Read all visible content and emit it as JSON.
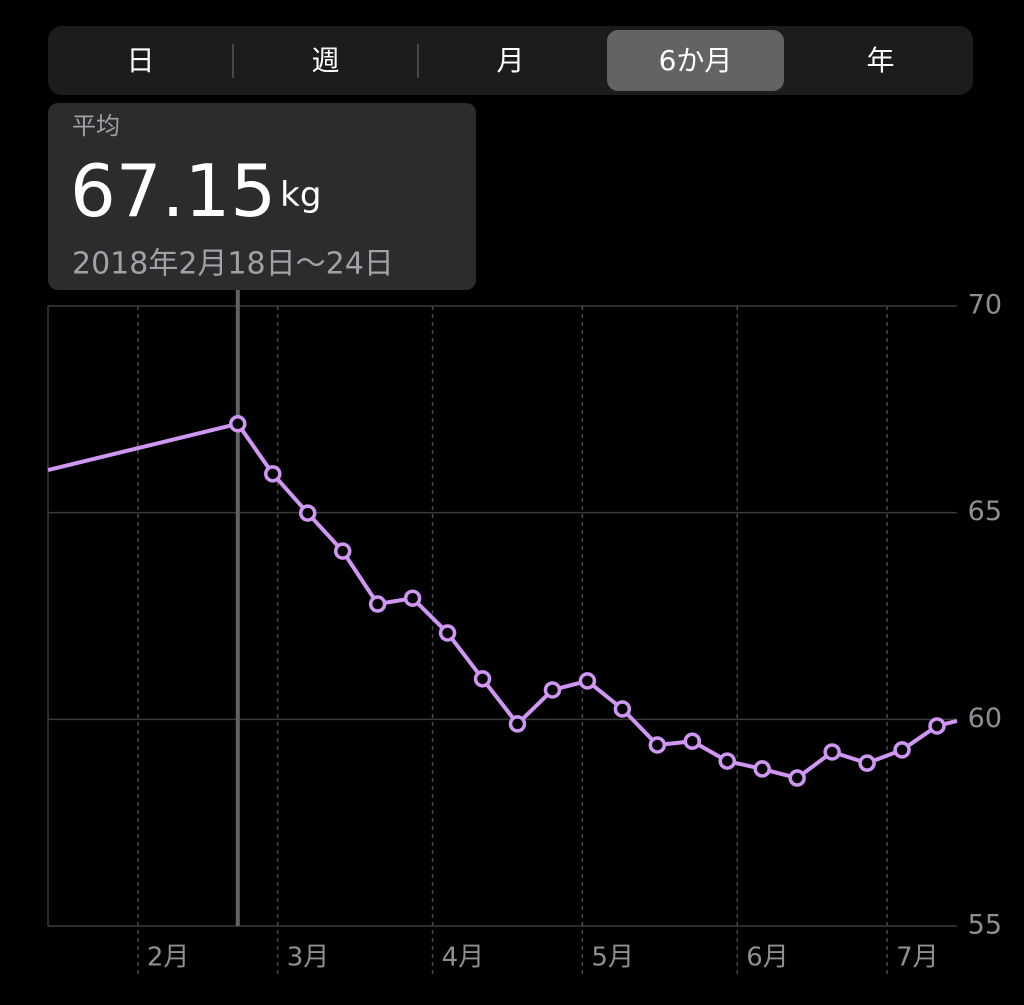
{
  "segments": {
    "items": [
      "日",
      "週",
      "月",
      "6か月",
      "年"
    ],
    "selected": 3
  },
  "callout": {
    "label": "平均",
    "value": "67.15",
    "unit": "kg",
    "range": "2018年2月18日～24日"
  },
  "chart_data": {
    "type": "line",
    "color": "#cf97f3",
    "x": [
      14,
      52,
      59,
      66,
      73,
      80,
      87,
      94,
      101,
      108,
      115,
      122,
      129,
      136,
      143,
      150,
      157,
      164,
      171,
      178,
      185,
      192,
      196
    ],
    "values": [
      66.03,
      67.15,
      65.94,
      64.99,
      64.07,
      62.79,
      62.93,
      62.09,
      60.98,
      59.89,
      60.71,
      60.93,
      60.25,
      59.38,
      59.47,
      58.99,
      58.8,
      58.58,
      59.21,
      58.94,
      59.26,
      59.84,
      59.96
    ],
    "selected_index": 1,
    "xlim": [
      14,
      196
    ],
    "xticks": [
      {
        "value": 32,
        "label": "2月"
      },
      {
        "value": 60,
        "label": "3月"
      },
      {
        "value": 91,
        "label": "4月"
      },
      {
        "value": 121,
        "label": "5月"
      },
      {
        "value": 152,
        "label": "6月"
      },
      {
        "value": 182,
        "label": "7月"
      }
    ],
    "ylim": [
      55,
      70
    ],
    "yticks": [
      55,
      60,
      65,
      70
    ],
    "grid": true
  }
}
